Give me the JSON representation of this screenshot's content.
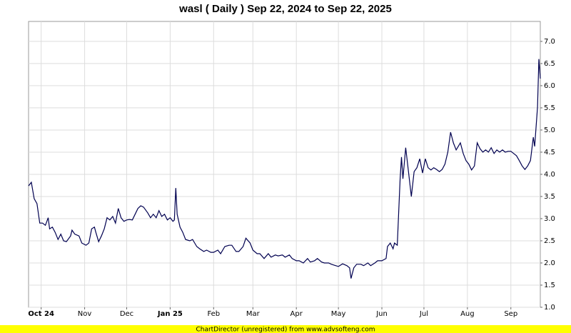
{
  "chart_data": {
    "type": "line",
    "title": "wasl ( Daily ) Sep 22, 2024 to Sep 22, 2025",
    "footer": "ChartDirector (unregistered) from www.advsofteng.com",
    "grid": true,
    "series": [
      {
        "color": "#000050",
        "x": [
          0,
          2,
          4,
          6,
          8,
          10,
          12,
          14,
          15,
          17,
          19,
          21,
          23,
          25,
          27,
          30,
          31,
          33,
          36,
          38,
          41,
          43,
          45,
          47,
          48,
          50,
          52,
          54,
          56,
          58,
          60,
          62,
          64,
          66,
          68,
          70,
          72,
          74,
          76,
          78,
          80,
          82,
          85,
          87,
          89,
          91,
          93,
          95,
          97,
          99,
          101,
          103,
          104,
          105,
          106,
          108,
          110,
          112,
          115,
          117,
          120,
          122,
          125,
          127,
          130,
          132,
          135,
          137,
          140,
          143,
          145,
          148,
          150,
          153,
          155,
          158,
          160,
          163,
          165,
          168,
          171,
          173,
          176,
          178,
          181,
          183,
          186,
          188,
          191,
          193,
          196,
          199,
          201,
          204,
          206,
          209,
          211,
          214,
          216,
          219,
          221,
          224,
          227,
          229,
          230,
          232,
          234,
          237,
          239,
          242,
          244,
          247,
          249,
          252,
          255,
          256,
          258,
          260,
          261,
          263,
          265,
          266,
          267,
          269,
          271,
          273,
          275,
          277,
          279,
          281,
          283,
          285,
          287,
          289,
          291,
          293,
          295,
          297,
          299,
          301,
          303,
          305,
          308,
          310,
          312,
          314,
          316,
          318,
          320,
          322,
          324,
          326,
          328,
          330,
          332,
          334,
          336,
          338,
          340,
          342,
          344,
          346,
          348,
          350,
          352,
          354,
          356,
          358,
          360,
          361,
          363,
          364,
          365
        ],
        "values": [
          3.74,
          3.82,
          3.45,
          3.34,
          2.9,
          2.9,
          2.85,
          3.02,
          2.77,
          2.81,
          2.69,
          2.53,
          2.65,
          2.5,
          2.48,
          2.61,
          2.74,
          2.65,
          2.61,
          2.45,
          2.4,
          2.45,
          2.77,
          2.81,
          2.69,
          2.48,
          2.61,
          2.77,
          3.02,
          2.97,
          3.05,
          2.9,
          3.23,
          3.02,
          2.94,
          2.97,
          2.98,
          2.97,
          3.1,
          3.23,
          3.29,
          3.26,
          3.13,
          3.02,
          3.1,
          3.02,
          3.18,
          3.05,
          3.1,
          2.97,
          3.02,
          2.94,
          2.97,
          3.69,
          3.1,
          2.81,
          2.69,
          2.53,
          2.5,
          2.53,
          2.37,
          2.32,
          2.26,
          2.29,
          2.24,
          2.24,
          2.29,
          2.21,
          2.37,
          2.4,
          2.4,
          2.26,
          2.26,
          2.37,
          2.56,
          2.45,
          2.29,
          2.21,
          2.21,
          2.1,
          2.21,
          2.13,
          2.18,
          2.16,
          2.18,
          2.13,
          2.18,
          2.1,
          2.05,
          2.05,
          2.0,
          2.1,
          2.02,
          2.05,
          2.1,
          2.02,
          2.0,
          2.0,
          1.97,
          1.94,
          1.92,
          1.98,
          1.94,
          1.89,
          1.65,
          1.89,
          1.97,
          1.97,
          1.94,
          2.0,
          1.94,
          2.0,
          2.05,
          2.05,
          2.1,
          2.37,
          2.45,
          2.32,
          2.45,
          2.4,
          3.9,
          4.39,
          3.9,
          4.6,
          4.06,
          3.5,
          4.06,
          4.15,
          4.35,
          4.03,
          4.35,
          4.15,
          4.1,
          4.15,
          4.11,
          4.06,
          4.11,
          4.23,
          4.5,
          4.95,
          4.71,
          4.55,
          4.71,
          4.47,
          4.31,
          4.23,
          4.1,
          4.19,
          4.71,
          4.58,
          4.5,
          4.55,
          4.5,
          4.6,
          4.47,
          4.55,
          4.5,
          4.55,
          4.5,
          4.52,
          4.52,
          4.47,
          4.42,
          4.31,
          4.19,
          4.11,
          4.19,
          4.31,
          4.84,
          4.63,
          5.52,
          6.6,
          6.16
        ]
      }
    ],
    "xlim": [
      0,
      365
    ],
    "xticks": [
      {
        "value": 9,
        "label": "Oct 24"
      },
      {
        "value": 40,
        "label": "Nov"
      },
      {
        "value": 70,
        "label": "Dec"
      },
      {
        "value": 101,
        "label": "Jan 25"
      },
      {
        "value": 132,
        "label": "Feb"
      },
      {
        "value": 160,
        "label": "Mar"
      },
      {
        "value": 191,
        "label": "Apr"
      },
      {
        "value": 221,
        "label": "May"
      },
      {
        "value": 252,
        "label": "Jun"
      },
      {
        "value": 282,
        "label": "Jul"
      },
      {
        "value": 313,
        "label": "Aug"
      },
      {
        "value": 344,
        "label": "Sep"
      }
    ],
    "ylim": [
      1.0,
      7.45
    ],
    "yticks": [
      {
        "value": 1,
        "label": "1.0"
      },
      1.5,
      {
        "value": 2,
        "label": "2.0"
      },
      2.5,
      {
        "value": 3,
        "label": "3.0"
      },
      3.5,
      {
        "value": 4,
        "label": "4.0"
      },
      4.5,
      {
        "value": 5,
        "label": "5.0"
      },
      5.5,
      {
        "value": 6,
        "label": "6.0"
      },
      6.5,
      {
        "value": 7,
        "label": "7.0"
      }
    ]
  }
}
